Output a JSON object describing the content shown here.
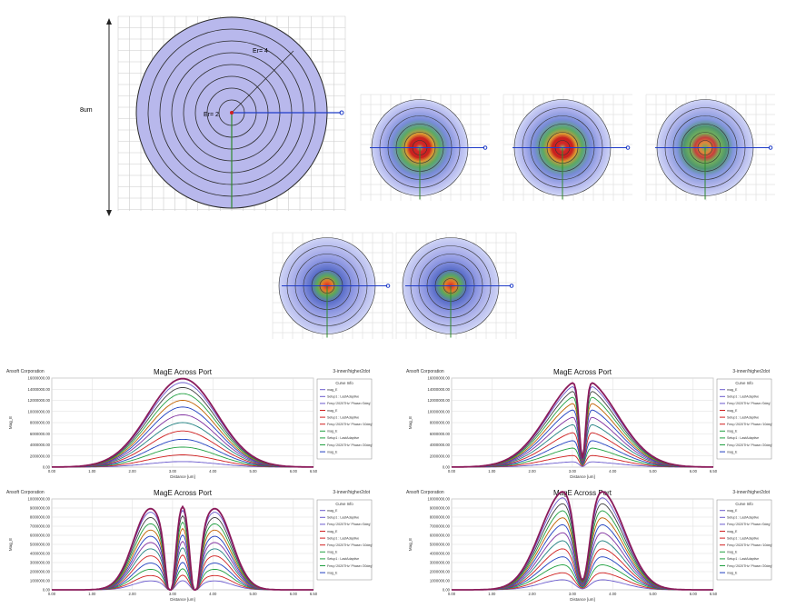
{
  "fiber_view": {
    "height_label": "8um",
    "ring_labels": [
      "Er= 2",
      "Er= 4"
    ],
    "colors": {
      "disk": "#b8b8ec",
      "ring": "#2a2a2a",
      "axis": "#1f3cc8",
      "vaxis": "#2e8b2e",
      "grid": "#cccccc"
    }
  },
  "mode_maps": [
    {
      "id": "map-1",
      "pattern": "ring-red"
    },
    {
      "id": "map-2",
      "pattern": "ring-red"
    },
    {
      "id": "map-3",
      "pattern": "ring-mixed"
    },
    {
      "id": "map-4",
      "pattern": "center-red"
    },
    {
      "id": "map-5",
      "pattern": "center-red"
    }
  ],
  "chart_data": [
    {
      "type": "line",
      "company": "Ansoft Corporation",
      "title": "MagE Across Port",
      "project": "3-inner/higher2dot",
      "legend_title": "Curve Info",
      "legend_entries": [
        "mag_E",
        "Setup1 : LastAdaptive",
        "Freq='2020THz' Phase='0deg'",
        "mag_E",
        "Setup1 : LastAdaptive",
        "Freq='2020THz' Phase='10deg'",
        "mag_E",
        "Setup1 : LastAdaptive",
        "Freq='2020THz' Phase='20deg'",
        "mag_E"
      ],
      "xlabel": "Distance [um]",
      "ylabel": "Mag_E",
      "xticks": [
        "0.00",
        "1.00",
        "2.00",
        "3.00",
        "4.00",
        "5.00",
        "6.00",
        "6.50"
      ],
      "yticks": [
        "0.00",
        "2000000.00",
        "4000000.00",
        "6000000.00",
        "8000000.00",
        "10000000.00",
        "12000000.00",
        "14000000.00",
        "16000000.00"
      ],
      "xlim": [
        0,
        6.5
      ],
      "ylim": [
        0,
        16000000
      ],
      "shape": "single-peak",
      "peak_x": 3.25,
      "peak_values": [
        1000000,
        2200000,
        3600000,
        5000000,
        6500000,
        8000000,
        9400000,
        10800000,
        12000000,
        13200000,
        14300000,
        15200000,
        15900000
      ]
    },
    {
      "type": "line",
      "company": "Ansoft Corporation",
      "title": "MagE Across Port",
      "project": "3-inner/higher2dot",
      "legend_title": "Curve Info",
      "legend_entries": [
        "mag_E",
        "Setup1 : LastAdaptive",
        "Freq='2020THz' Phase='0deg'",
        "mag_E",
        "Setup1 : LastAdaptive",
        "Freq='2020THz' Phase='10deg'",
        "mag_E",
        "Setup1 : LastAdaptive",
        "Freq='2020THz' Phase='20deg'",
        "mag_E"
      ],
      "xlabel": "Distance [um]",
      "ylabel": "Mag_E",
      "xticks": [
        "0.00",
        "1.00",
        "2.00",
        "3.00",
        "4.00",
        "5.00",
        "6.00",
        "6.50"
      ],
      "yticks": [
        "0.00",
        "2000000.00",
        "4000000.00",
        "6000000.00",
        "8000000.00",
        "10000000.00",
        "12000000.00",
        "14000000.00",
        "16000000.00"
      ],
      "xlim": [
        0,
        6.5
      ],
      "ylim": [
        0,
        16000000
      ],
      "shape": "peak-with-dip",
      "peak_x": 3.25,
      "peak_values": [
        1000000,
        2200000,
        3600000,
        5000000,
        6500000,
        8000000,
        9400000,
        10800000,
        12000000,
        13200000,
        14300000,
        15200000,
        15900000
      ]
    },
    {
      "type": "line",
      "company": "Ansoft Corporation",
      "title": "MagE Across Port",
      "project": "3-inner/higher2dot",
      "legend_title": "Curve Info",
      "legend_entries": [
        "mag_E",
        "Setup1 : LastAdaptive",
        "Freq='2020THz' Phase='0deg'",
        "mag_E",
        "Setup1 : LastAdaptive",
        "Freq='2020THz' Phase='10deg'",
        "mag_E",
        "Setup1 : LastAdaptive",
        "Freq='2020THz' Phase='20deg'",
        "mag_E"
      ],
      "xlabel": "Distance [um]",
      "ylabel": "Mag_E",
      "xticks": [
        "0.00",
        "1.00",
        "2.00",
        "3.00",
        "4.00",
        "5.00",
        "6.00",
        "6.50"
      ],
      "yticks": [
        "0.00",
        "1000000.00",
        "2000000.00",
        "3000000.00",
        "4000000.00",
        "5000000.00",
        "6000000.00",
        "7000000.00",
        "8000000.00",
        "9000000.00",
        "10000000.00"
      ],
      "xlim": [
        0,
        6.5
      ],
      "ylim": [
        0,
        10000000
      ],
      "shape": "triple-peak",
      "peak_x": [
        2.45,
        3.25,
        4.05
      ],
      "peak_values": [
        1000000,
        1600000,
        2300000,
        3000000,
        3800000,
        4600000,
        5300000,
        6000000,
        6700000,
        7400000,
        8100000,
        8700000,
        9100000
      ]
    },
    {
      "type": "line",
      "company": "Ansoft Corporation",
      "title": "MagE Across Port",
      "project": "3-inner/higher2dot",
      "legend_title": "Curve Info",
      "legend_entries": [
        "mag_E",
        "Setup1 : LastAdaptive",
        "Freq='2020THz' Phase='0deg'",
        "mag_E",
        "Setup1 : LastAdaptive",
        "Freq='2020THz' Phase='10deg'",
        "mag_E",
        "Setup1 : LastAdaptive",
        "Freq='2020THz' Phase='20deg'",
        "mag_E"
      ],
      "xlabel": "Distance [um]",
      "ylabel": "Mag_E",
      "xticks": [
        "0.00",
        "1.00",
        "2.00",
        "3.00",
        "4.00",
        "5.00",
        "6.00",
        "6.50"
      ],
      "yticks": [
        "0.00",
        "1000000.00",
        "2000000.00",
        "3000000.00",
        "4000000.00",
        "5000000.00",
        "6000000.00",
        "7000000.00",
        "8000000.00",
        "9000000.00",
        "10000000.00"
      ],
      "xlim": [
        0,
        6.5
      ],
      "ylim": [
        0,
        10000000
      ],
      "shape": "double-peak",
      "peak_x": [
        2.7,
        3.8
      ],
      "peak_values": [
        1000000,
        1700000,
        2500000,
        3300000,
        4100000,
        4900000,
        5700000,
        6500000,
        7200000,
        7900000,
        8600000,
        9200000,
        9800000
      ]
    }
  ],
  "series_colors": [
    "#6a5acd",
    "#d02020",
    "#20a040",
    "#2040c0",
    "#d02020",
    "#208080",
    "#8030a0",
    "#2040c0",
    "#c06000",
    "#20a040",
    "#404040",
    "#6a5acd",
    "#8a1a5a"
  ]
}
